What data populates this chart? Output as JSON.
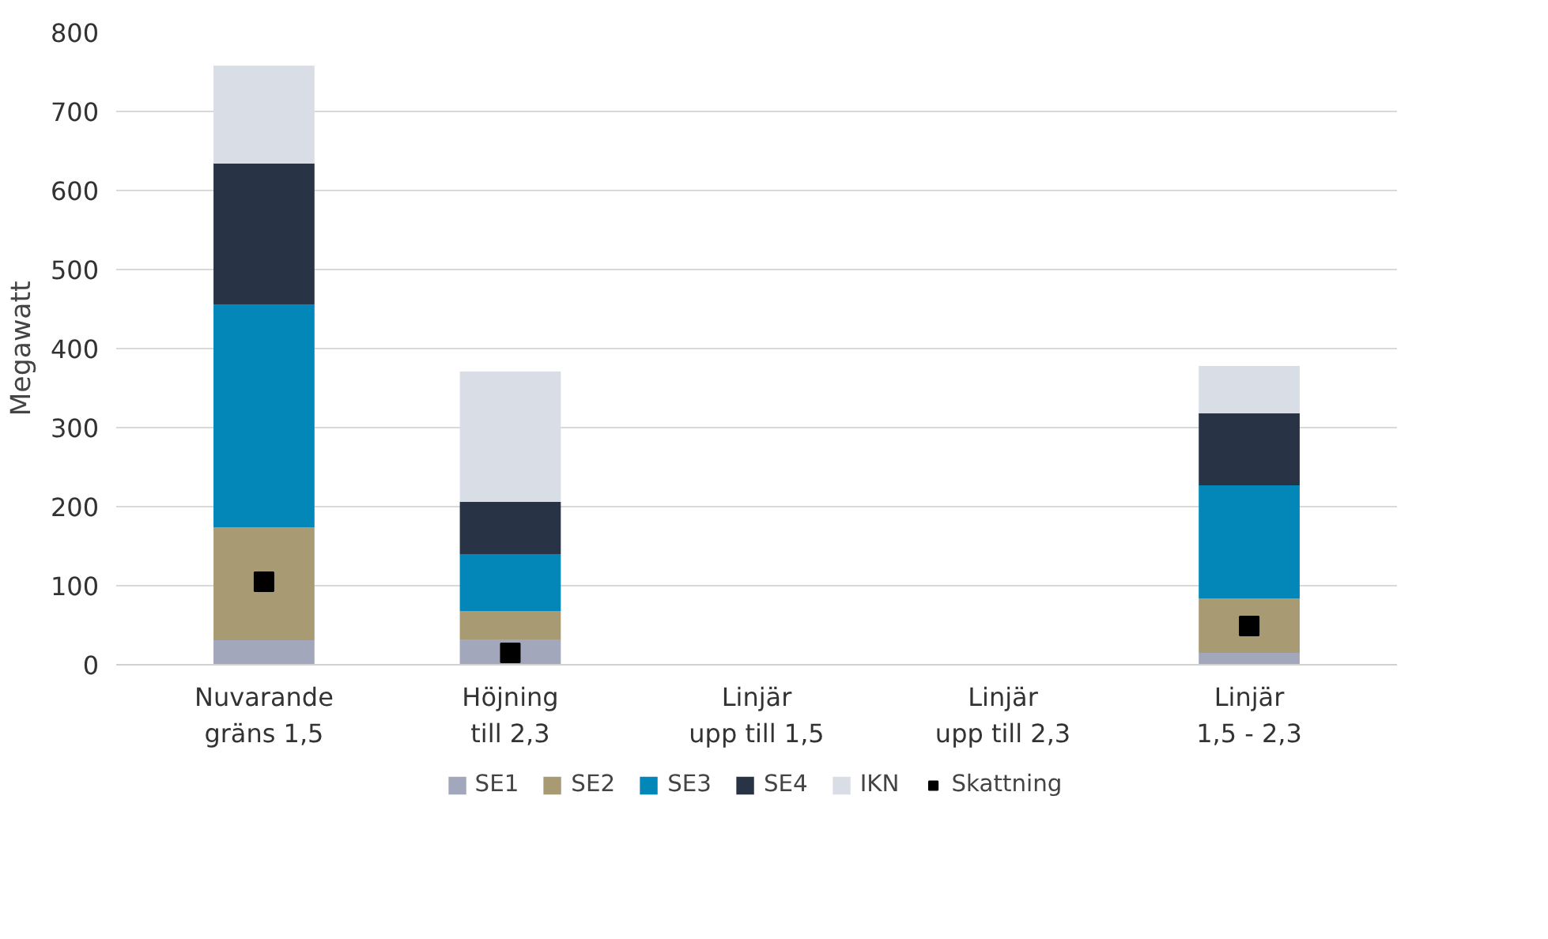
{
  "chart_data": {
    "type": "bar",
    "stacked": true,
    "ylabel": "Megawatt",
    "categories": [
      "Nuvarande\ngräns 1,5",
      "Höjning\ntill 2,3",
      "Linjär\nupp till 1,5",
      "Linjär\nupp till 2,3",
      "Linjär\n1,5 - 2,3"
    ],
    "series": [
      {
        "name": "SE1",
        "color": "#a3a7bb",
        "values": [
          31,
          32,
          null,
          null,
          15
        ]
      },
      {
        "name": "SE2",
        "color": "#a89b74",
        "values": [
          143,
          36,
          null,
          null,
          69
        ]
      },
      {
        "name": "SE3",
        "color": "#0287b8",
        "values": [
          282,
          72,
          null,
          null,
          143
        ]
      },
      {
        "name": "SE4",
        "color": "#283445",
        "values": [
          178,
          66,
          null,
          null,
          91
        ]
      },
      {
        "name": "IKN",
        "color": "#d9dee6",
        "values": [
          124,
          165,
          null,
          null,
          60
        ]
      },
      {
        "name": "Skattning",
        "type": "scatter",
        "marker": "square",
        "color": "#000000",
        "values": [
          105,
          15,
          null,
          null,
          49
        ]
      }
    ],
    "ylim": [
      0,
      800
    ],
    "yticks": [
      0,
      100,
      200,
      300,
      400,
      500,
      600,
      700,
      800
    ],
    "grid": "y",
    "legend": "bottom"
  }
}
